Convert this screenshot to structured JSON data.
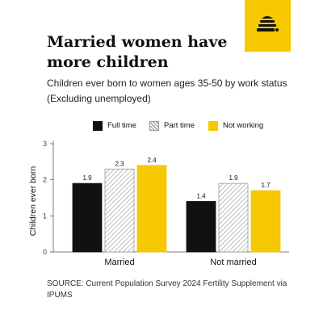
{
  "header": {
    "title": "Married women have more children",
    "subtitle_line1": "Children ever born to women ages 35-50 by work status",
    "subtitle_line2": "(Excluding unemployed)"
  },
  "logo": {
    "icon": "beehive-icon",
    "background": "#f5c800"
  },
  "source": "SOURCE: Current Population Survey 2024 Fertility Supplement via IPUMS",
  "chart_data": {
    "type": "bar",
    "categories": [
      "Married",
      "Not married"
    ],
    "series": [
      {
        "name": "Full time",
        "values": [
          1.9,
          1.4
        ],
        "labels": [
          "1.9",
          "1.4"
        ],
        "color": "#111111",
        "pattern": "solid"
      },
      {
        "name": "Part time",
        "values": [
          2.3,
          1.9
        ],
        "labels": [
          "2.3",
          "1.9"
        ],
        "color": "#9a9a9a",
        "pattern": "hatched"
      },
      {
        "name": "Not working",
        "values": [
          2.4,
          1.7
        ],
        "labels": [
          "2.4",
          "1.7"
        ],
        "color": "#f5c800",
        "pattern": "solid"
      }
    ],
    "ylabel": "Children ever born",
    "xlabel": "",
    "ylim": [
      0,
      3
    ],
    "yticks": [
      0,
      1,
      2,
      3
    ],
    "legend_position": "top",
    "grid": false
  }
}
